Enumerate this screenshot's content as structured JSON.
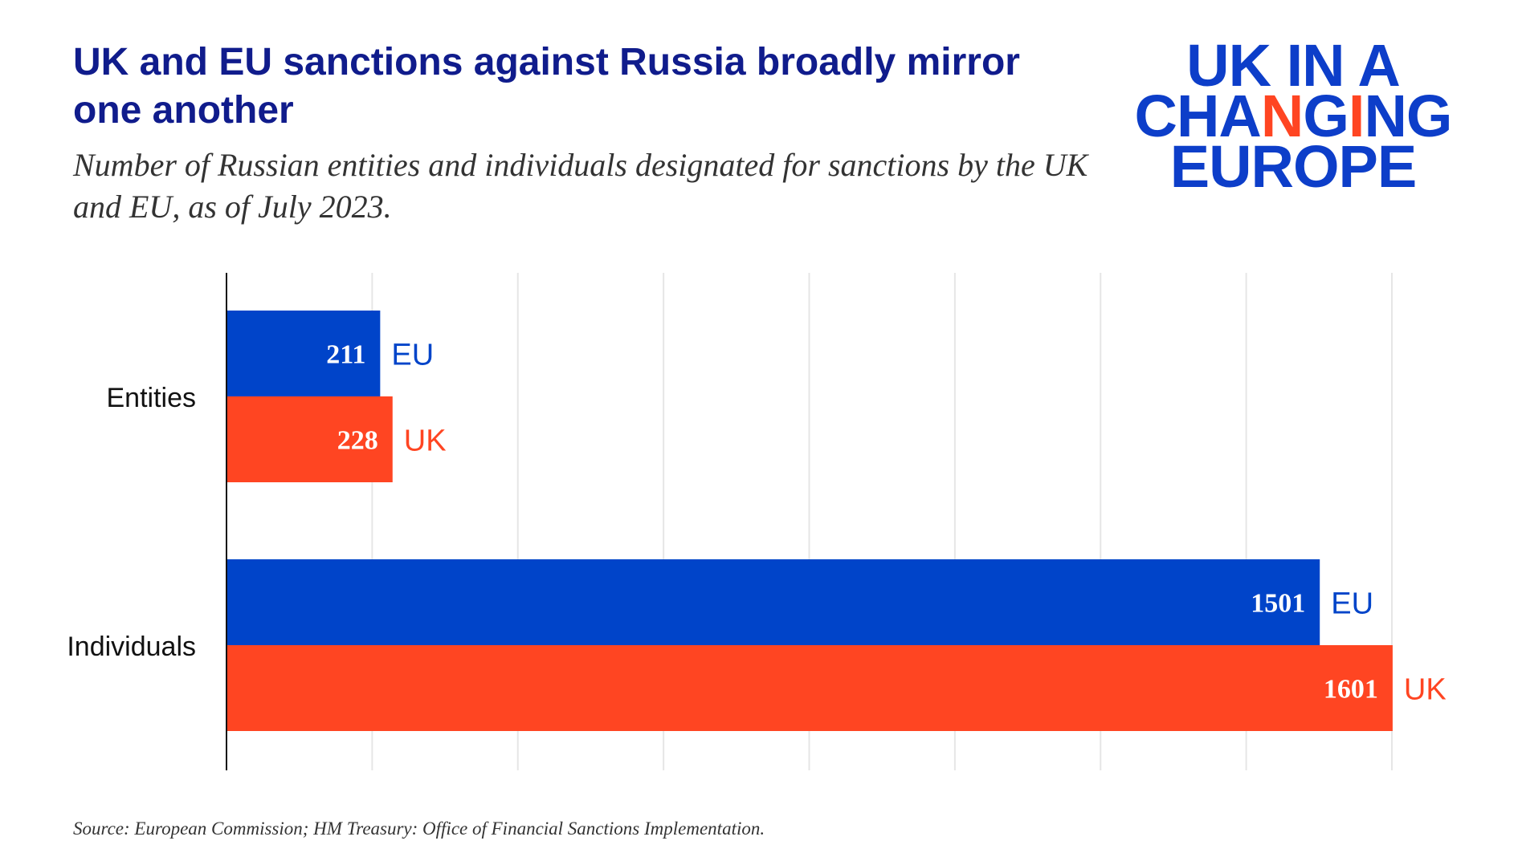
{
  "title": "UK and EU sanctions against Russia broadly mirror one another",
  "subtitle": "Number of Russian entities and individuals designated for sanctions by the UK and EU, as of July 2023.",
  "logo": {
    "line1": "UK IN A",
    "line2": "CHANGING",
    "line3": "EUROPE"
  },
  "source": "Source: European Commission; HM Treasury: Office of Financial Sanctions Implementation.",
  "colors": {
    "eu": "#0044c9",
    "uk": "#ff4522",
    "title": "#101c8c",
    "grid": "#e6e6e6",
    "axis": "#111111"
  },
  "chart_data": {
    "type": "bar",
    "orientation": "horizontal",
    "categories": [
      "Entities",
      "Individuals"
    ],
    "series": [
      {
        "name": "EU",
        "values": [
          211,
          1501
        ]
      },
      {
        "name": "UK",
        "values": [
          228,
          1601
        ]
      }
    ],
    "xlim": [
      0,
      1600
    ],
    "grid": true,
    "legend": "direct labels at bar ends"
  }
}
